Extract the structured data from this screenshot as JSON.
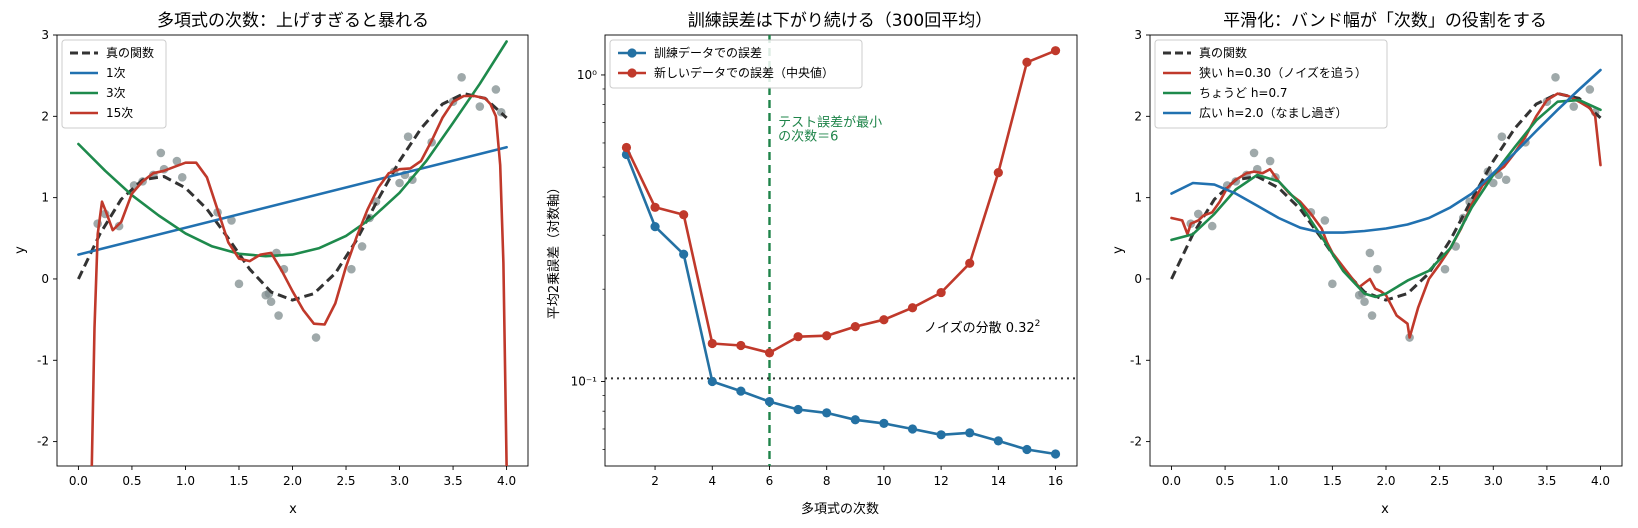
{
  "figure": {
    "colors": {
      "true_fn": "#333333",
      "blue": "#2171b0",
      "green": "#1e8a4c",
      "red": "#c0392b",
      "points": "#7f8c8d",
      "train": "#2471a3",
      "test": "#c0392b",
      "guide": "#1e8449"
    }
  },
  "chart_data": [
    {
      "type": "scatter",
      "title": "多項式の次数：上げすぎると暴れる",
      "xlabel": "x",
      "ylabel": "y",
      "xlim": [
        -0.2,
        4.2
      ],
      "ylim": [
        -2.3,
        3.0
      ],
      "xticks": [
        0.0,
        0.5,
        1.0,
        1.5,
        2.0,
        2.5,
        3.0,
        3.5,
        4.0
      ],
      "xtick_labels": [
        "0.0",
        "0.5",
        "1.0",
        "1.5",
        "2.0",
        "2.5",
        "3.0",
        "3.5",
        "4.0"
      ],
      "yticks": [
        -2,
        -1,
        0,
        1,
        2,
        3
      ],
      "ytick_labels": [
        "-2",
        "-1",
        "0",
        "1",
        "2",
        "3"
      ],
      "legend_position": "upper-left",
      "points": {
        "x": [
          0.18,
          0.25,
          0.38,
          0.52,
          0.6,
          0.7,
          0.77,
          0.8,
          0.92,
          0.97,
          1.3,
          1.43,
          1.5,
          1.75,
          1.78,
          1.8,
          1.85,
          1.87,
          1.92,
          2.22,
          2.55,
          2.65,
          2.72,
          2.78,
          2.95,
          3.0,
          3.05,
          3.08,
          3.12,
          3.3,
          3.5,
          3.58,
          3.75,
          3.9,
          3.95
        ],
        "y": [
          0.68,
          0.8,
          0.65,
          1.15,
          1.2,
          1.28,
          1.55,
          1.35,
          1.45,
          1.25,
          0.82,
          0.72,
          -0.06,
          -0.2,
          -0.18,
          -0.28,
          0.32,
          -0.45,
          0.12,
          -0.72,
          0.12,
          0.4,
          0.75,
          0.95,
          1.32,
          1.18,
          1.28,
          1.75,
          1.22,
          1.68,
          2.18,
          2.48,
          2.12,
          2.33,
          2.05
        ]
      },
      "series": [
        {
          "name": "真の関数",
          "kind": "curve",
          "style": "dashed",
          "color": "#333333",
          "x": [
            0.0,
            0.2,
            0.4,
            0.6,
            0.8,
            1.0,
            1.2,
            1.4,
            1.6,
            1.8,
            2.0,
            2.2,
            2.4,
            2.6,
            2.8,
            3.0,
            3.2,
            3.4,
            3.6,
            3.8,
            4.0
          ],
          "y": [
            0.0,
            0.55,
            0.98,
            1.22,
            1.26,
            1.12,
            0.86,
            0.5,
            0.12,
            -0.16,
            -0.26,
            -0.18,
            0.07,
            0.48,
            0.98,
            1.45,
            1.85,
            2.15,
            2.28,
            2.22,
            1.98
          ]
        },
        {
          "name": "1次",
          "kind": "curve",
          "style": "solid",
          "color": "#2171b0",
          "x": [
            0.0,
            4.0
          ],
          "y": [
            0.3,
            1.62
          ]
        },
        {
          "name": "3次",
          "kind": "curve",
          "style": "solid",
          "color": "#1e8a4c",
          "x": [
            0.0,
            0.25,
            0.5,
            0.75,
            1.0,
            1.25,
            1.5,
            1.75,
            2.0,
            2.25,
            2.5,
            2.75,
            3.0,
            3.25,
            3.5,
            3.75,
            4.0
          ],
          "y": [
            1.66,
            1.33,
            1.03,
            0.78,
            0.56,
            0.4,
            0.31,
            0.28,
            0.3,
            0.38,
            0.53,
            0.76,
            1.06,
            1.45,
            1.92,
            2.4,
            2.92
          ]
        },
        {
          "name": "15次",
          "kind": "curve",
          "style": "solid",
          "color": "#c0392b",
          "x": [
            0.125,
            0.15,
            0.18,
            0.22,
            0.26,
            0.32,
            0.4,
            0.5,
            0.6,
            0.7,
            0.8,
            0.9,
            1.0,
            1.1,
            1.2,
            1.3,
            1.4,
            1.5,
            1.6,
            1.7,
            1.8,
            1.9,
            2.0,
            2.1,
            2.2,
            2.3,
            2.4,
            2.5,
            2.6,
            2.7,
            2.8,
            2.9,
            3.0,
            3.1,
            3.2,
            3.3,
            3.4,
            3.5,
            3.6,
            3.7,
            3.8,
            3.85,
            3.9,
            3.94,
            3.97,
            4.0
          ],
          "y": [
            -2.3,
            -0.6,
            0.55,
            0.95,
            0.82,
            0.6,
            0.7,
            1.05,
            1.2,
            1.3,
            1.33,
            1.38,
            1.43,
            1.43,
            1.25,
            0.85,
            0.45,
            0.25,
            0.22,
            0.3,
            0.32,
            0.1,
            -0.15,
            -0.38,
            -0.55,
            -0.56,
            -0.3,
            0.15,
            0.52,
            0.85,
            1.12,
            1.3,
            1.35,
            1.36,
            1.45,
            1.7,
            1.98,
            2.18,
            2.25,
            2.25,
            2.22,
            2.15,
            2.0,
            1.4,
            0.2,
            -2.3
          ]
        }
      ]
    },
    {
      "type": "line",
      "title": "訓練誤差は下がり続ける（300回平均）",
      "xlabel": "多項式の次数",
      "ylabel": "平均2乗誤差（対数軸）",
      "yscale": "log",
      "xlim": [
        0.25,
        16.75
      ],
      "ylim": [
        0.053,
        1.35
      ],
      "xticks": [
        2,
        4,
        6,
        8,
        10,
        12,
        14,
        16
      ],
      "xtick_labels": [
        "2",
        "4",
        "6",
        "8",
        "10",
        "12",
        "14",
        "16"
      ],
      "yticks": [
        0.1,
        1.0
      ],
      "ytick_labels": [
        "10⁻¹",
        "10⁰"
      ],
      "legend_position": "upper-left",
      "x": [
        1,
        2,
        3,
        4,
        5,
        6,
        7,
        8,
        9,
        10,
        11,
        12,
        13,
        14,
        15,
        16
      ],
      "series": [
        {
          "name": "訓練データでの誤差",
          "color": "#2471a3",
          "values": [
            0.55,
            0.32,
            0.26,
            0.1,
            0.093,
            0.086,
            0.081,
            0.079,
            0.075,
            0.073,
            0.07,
            0.067,
            0.068,
            0.064,
            0.06,
            0.058
          ]
        },
        {
          "name": "新しいデータでの誤差（中央値）",
          "color": "#c0392b",
          "values": [
            0.58,
            0.37,
            0.35,
            0.133,
            0.131,
            0.124,
            0.14,
            0.141,
            0.151,
            0.159,
            0.174,
            0.195,
            0.243,
            0.48,
            1.1,
            1.2
          ]
        }
      ],
      "reference_lines": [
        {
          "kind": "vertical",
          "x": 6,
          "style": "dashed",
          "color": "#1e8449"
        },
        {
          "kind": "horizontal",
          "y": 0.1024,
          "style": "dotted",
          "color": "#333333"
        }
      ],
      "annotations": [
        {
          "text_lines": [
            "テスト誤差が最小",
            "の次数＝6"
          ],
          "x": 6.3,
          "y": 0.68,
          "color": "#1e8449"
        },
        {
          "text": "ノイズの分散 0.32",
          "superscript": "2",
          "x": 11.4,
          "y": 0.145,
          "color": "#000000"
        }
      ]
    },
    {
      "type": "scatter",
      "title": "平滑化：バンド幅が「次数」の役割をする",
      "xlabel": "x",
      "ylabel": "y",
      "xlim": [
        -0.2,
        4.2
      ],
      "ylim": [
        -2.3,
        3.0
      ],
      "xticks": [
        0.0,
        0.5,
        1.0,
        1.5,
        2.0,
        2.5,
        3.0,
        3.5,
        4.0
      ],
      "xtick_labels": [
        "0.0",
        "0.5",
        "1.0",
        "1.5",
        "2.0",
        "2.5",
        "3.0",
        "3.5",
        "4.0"
      ],
      "yticks": [
        -2,
        -1,
        0,
        1,
        2,
        3
      ],
      "ytick_labels": [
        "-2",
        "-1",
        "0",
        "1",
        "2",
        "3"
      ],
      "legend_position": "upper-left",
      "points": {
        "x": [
          0.18,
          0.25,
          0.38,
          0.52,
          0.6,
          0.7,
          0.77,
          0.8,
          0.92,
          0.97,
          1.3,
          1.43,
          1.5,
          1.75,
          1.78,
          1.8,
          1.85,
          1.87,
          1.92,
          2.22,
          2.55,
          2.65,
          2.72,
          2.78,
          2.95,
          3.0,
          3.05,
          3.08,
          3.12,
          3.3,
          3.5,
          3.58,
          3.75,
          3.9,
          3.95
        ],
        "y": [
          0.68,
          0.8,
          0.65,
          1.15,
          1.2,
          1.28,
          1.55,
          1.35,
          1.45,
          1.25,
          0.82,
          0.72,
          -0.06,
          -0.2,
          -0.18,
          -0.28,
          0.32,
          -0.45,
          0.12,
          -0.72,
          0.12,
          0.4,
          0.75,
          0.95,
          1.32,
          1.18,
          1.28,
          1.75,
          1.22,
          1.68,
          2.18,
          2.48,
          2.12,
          2.33,
          2.05
        ]
      },
      "series": [
        {
          "name": "真の関数",
          "kind": "curve",
          "style": "dashed",
          "color": "#333333",
          "x": [
            0.0,
            0.2,
            0.4,
            0.6,
            0.8,
            1.0,
            1.2,
            1.4,
            1.6,
            1.8,
            2.0,
            2.2,
            2.4,
            2.6,
            2.8,
            3.0,
            3.2,
            3.4,
            3.6,
            3.8,
            4.0
          ],
          "y": [
            0.0,
            0.55,
            0.98,
            1.22,
            1.26,
            1.12,
            0.86,
            0.5,
            0.12,
            -0.16,
            -0.26,
            -0.18,
            0.07,
            0.48,
            0.98,
            1.45,
            1.85,
            2.15,
            2.28,
            2.22,
            1.98
          ]
        },
        {
          "name": "狭い h=0.30（ノイズを追う）",
          "kind": "curve",
          "style": "solid",
          "color": "#c0392b",
          "x": [
            0.0,
            0.1,
            0.15,
            0.18,
            0.25,
            0.3,
            0.38,
            0.45,
            0.52,
            0.6,
            0.7,
            0.77,
            0.85,
            0.92,
            1.0,
            1.1,
            1.2,
            1.3,
            1.4,
            1.45,
            1.5,
            1.6,
            1.7,
            1.75,
            1.8,
            1.85,
            1.9,
            1.95,
            2.0,
            2.1,
            2.2,
            2.22,
            2.3,
            2.4,
            2.5,
            2.6,
            2.7,
            2.8,
            2.9,
            3.0,
            3.1,
            3.2,
            3.3,
            3.4,
            3.5,
            3.6,
            3.7,
            3.8,
            3.9,
            3.95,
            4.0
          ],
          "y": [
            0.75,
            0.72,
            0.55,
            0.68,
            0.72,
            0.78,
            0.82,
            0.95,
            1.12,
            1.22,
            1.3,
            1.32,
            1.3,
            1.35,
            1.2,
            1.05,
            0.95,
            0.8,
            0.62,
            0.45,
            0.32,
            0.15,
            -0.02,
            -0.1,
            -0.05,
            0.0,
            -0.12,
            -0.15,
            -0.2,
            -0.45,
            -0.55,
            -0.72,
            -0.35,
            0.0,
            0.18,
            0.38,
            0.62,
            0.92,
            1.15,
            1.28,
            1.38,
            1.55,
            1.75,
            2.0,
            2.2,
            2.28,
            2.25,
            2.18,
            2.1,
            2.0,
            1.4
          ]
        },
        {
          "name": "ちょうど h=0.7",
          "kind": "curve",
          "style": "solid",
          "color": "#1e8a4c",
          "x": [
            0.0,
            0.2,
            0.4,
            0.6,
            0.8,
            1.0,
            1.2,
            1.4,
            1.6,
            1.8,
            1.9,
            2.0,
            2.2,
            2.4,
            2.6,
            2.8,
            3.0,
            3.2,
            3.4,
            3.6,
            3.8,
            4.0
          ],
          "y": [
            0.48,
            0.55,
            0.8,
            1.1,
            1.28,
            1.2,
            0.92,
            0.52,
            0.1,
            -0.18,
            -0.22,
            -0.18,
            -0.02,
            0.1,
            0.38,
            0.88,
            1.28,
            1.62,
            1.95,
            2.18,
            2.2,
            2.08
          ]
        },
        {
          "name": "広い h=2.0（なまし過ぎ）",
          "kind": "curve",
          "style": "solid",
          "color": "#2171b0",
          "x": [
            0.0,
            0.2,
            0.4,
            0.6,
            0.8,
            1.0,
            1.2,
            1.4,
            1.6,
            1.8,
            2.0,
            2.2,
            2.4,
            2.6,
            2.8,
            3.0,
            3.2,
            3.4,
            3.6,
            3.8,
            4.0
          ],
          "y": [
            1.05,
            1.18,
            1.16,
            1.05,
            0.9,
            0.75,
            0.63,
            0.57,
            0.57,
            0.59,
            0.62,
            0.67,
            0.75,
            0.88,
            1.05,
            1.3,
            1.55,
            1.82,
            2.08,
            2.33,
            2.57
          ]
        }
      ]
    }
  ]
}
